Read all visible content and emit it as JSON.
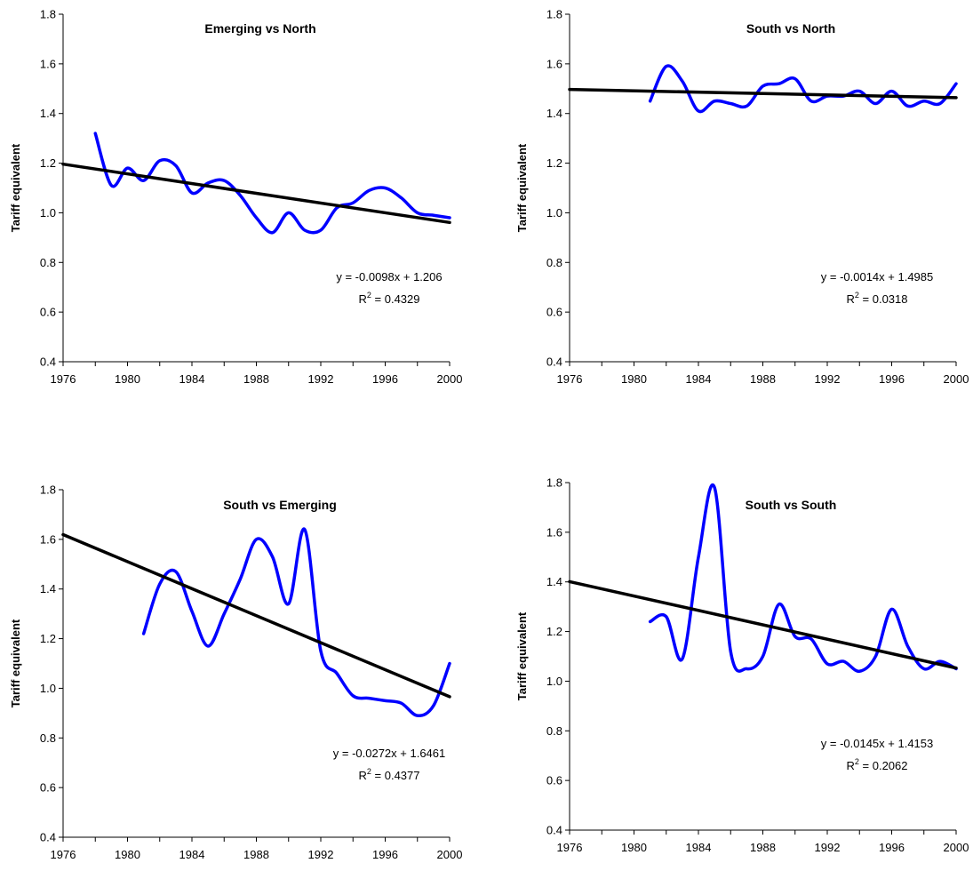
{
  "chart_data": [
    {
      "type": "line",
      "title": "Emerging vs North",
      "ylabel": "Tariff equivalent",
      "xlabel": "",
      "ylim": [
        0.4,
        1.8
      ],
      "xlim": [
        1976,
        2000
      ],
      "yticks": [
        "0.4",
        "0.6",
        "0.8",
        "1.0",
        "1.2",
        "1.4",
        "1.6",
        "1.8"
      ],
      "xticks": [
        "1976",
        "1980",
        "1984",
        "1988",
        "1992",
        "1996",
        "2000"
      ],
      "series": [
        {
          "color": "#0000ff",
          "x": [
            1978,
            1979,
            1980,
            1981,
            1982,
            1983,
            1984,
            1985,
            1986,
            1987,
            1988,
            1989,
            1990,
            1991,
            1992,
            1993,
            1994,
            1995,
            1996,
            1997,
            1998,
            1999,
            2000
          ],
          "y": [
            1.32,
            1.11,
            1.18,
            1.13,
            1.21,
            1.19,
            1.08,
            1.12,
            1.13,
            1.07,
            0.98,
            0.92,
            1.0,
            0.93,
            0.93,
            1.02,
            1.04,
            1.09,
            1.1,
            1.06,
            1.0,
            0.99,
            0.98
          ]
        }
      ],
      "trendline": {
        "color": "#000000",
        "x": [
          1976,
          2000
        ],
        "y": [
          1.196,
          0.961
        ]
      },
      "equation": "y = -0.0098x + 1.206",
      "r2_label": "R",
      "r2_sup": "2",
      "r2_value": " = 0.4329"
    },
    {
      "type": "line",
      "title": "South vs North",
      "ylabel": "Tariff equivalent",
      "xlabel": "",
      "ylim": [
        0.4,
        1.8
      ],
      "xlim": [
        1976,
        2000
      ],
      "yticks": [
        "0.4",
        "0.6",
        "0.8",
        "1.0",
        "1.2",
        "1.4",
        "1.6",
        "1.8"
      ],
      "xticks": [
        "1976",
        "1980",
        "1984",
        "1988",
        "1992",
        "1996",
        "2000"
      ],
      "series": [
        {
          "color": "#0000ff",
          "x": [
            1981,
            1982,
            1983,
            1984,
            1985,
            1986,
            1987,
            1988,
            1989,
            1990,
            1991,
            1992,
            1993,
            1994,
            1995,
            1996,
            1997,
            1998,
            1999,
            2000
          ],
          "y": [
            1.45,
            1.59,
            1.53,
            1.41,
            1.45,
            1.44,
            1.43,
            1.51,
            1.52,
            1.54,
            1.45,
            1.47,
            1.47,
            1.49,
            1.44,
            1.49,
            1.43,
            1.45,
            1.44,
            1.52
          ]
        }
      ],
      "trendline": {
        "color": "#000000",
        "x": [
          1976,
          2000
        ],
        "y": [
          1.497,
          1.464
        ]
      },
      "equation": "y = -0.0014x + 1.4985",
      "r2_label": "R",
      "r2_sup": "2",
      "r2_value": " = 0.0318"
    },
    {
      "type": "line",
      "title": "South vs Emerging",
      "ylabel": "Tariff equivalent",
      "xlabel": "",
      "ylim": [
        0.4,
        1.8
      ],
      "xlim": [
        1976,
        2000
      ],
      "yticks": [
        "0.4",
        "0.6",
        "0.8",
        "1.0",
        "1.2",
        "1.4",
        "1.6",
        "1.8"
      ],
      "xticks": [
        "1976",
        "1980",
        "1984",
        "1988",
        "1992",
        "1996",
        "2000"
      ],
      "series": [
        {
          "color": "#0000ff",
          "x": [
            1981,
            1982,
            1983,
            1984,
            1985,
            1986,
            1987,
            1988,
            1989,
            1990,
            1991,
            1992,
            1993,
            1994,
            1995,
            1996,
            1997,
            1998,
            1999,
            2000
          ],
          "y": [
            1.22,
            1.42,
            1.47,
            1.31,
            1.17,
            1.3,
            1.44,
            1.6,
            1.53,
            1.34,
            1.64,
            1.15,
            1.06,
            0.97,
            0.96,
            0.95,
            0.94,
            0.89,
            0.93,
            1.1
          ]
        }
      ],
      "trendline": {
        "color": "#000000",
        "x": [
          1976,
          2000
        ],
        "y": [
          1.619,
          0.966
        ]
      },
      "equation": "y = -0.0272x + 1.6461",
      "r2_label": "R",
      "r2_sup": "2",
      "r2_value": " = 0.4377"
    },
    {
      "type": "line",
      "title": "South vs South",
      "ylabel": "Tariff equivalent",
      "xlabel": "",
      "ylim": [
        0.4,
        1.8
      ],
      "xlim": [
        1976,
        2000
      ],
      "yticks": [
        "0.4",
        "0.6",
        "0.8",
        "1.0",
        "1.2",
        "1.4",
        "1.6",
        "1.8"
      ],
      "xticks": [
        "1976",
        "1980",
        "1984",
        "1988",
        "1992",
        "1996",
        "2000"
      ],
      "series": [
        {
          "color": "#0000ff",
          "x": [
            1981,
            1982,
            1983,
            1984,
            1985,
            1986,
            1987,
            1988,
            1989,
            1990,
            1991,
            1992,
            1993,
            1994,
            1995,
            1996,
            1997,
            1998,
            1999,
            2000
          ],
          "y": [
            1.24,
            1.26,
            1.09,
            1.5,
            1.78,
            1.12,
            1.05,
            1.1,
            1.31,
            1.18,
            1.17,
            1.07,
            1.08,
            1.04,
            1.1,
            1.29,
            1.14,
            1.05,
            1.08,
            1.05
          ]
        }
      ],
      "trendline": {
        "color": "#000000",
        "x": [
          1976,
          2000
        ],
        "y": [
          1.401,
          1.053
        ]
      },
      "equation": "y = -0.0145x + 1.4153",
      "r2_label": "R",
      "r2_sup": "2",
      "r2_value": " = 0.2062"
    }
  ]
}
